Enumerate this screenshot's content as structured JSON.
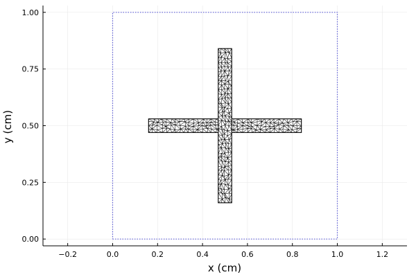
{
  "chart_data": {
    "type": "mesh",
    "title": "",
    "xlabel": "x (cm)",
    "ylabel": "y (cm)",
    "xlim": [
      -0.31,
      1.31
    ],
    "ylim": [
      -0.03,
      1.03
    ],
    "xticks": [
      -0.2,
      0.0,
      0.2,
      0.4,
      0.6,
      0.8,
      1.0,
      1.2
    ],
    "xtick_labels": [
      "−0.2",
      "0.0",
      "0.2",
      "0.4",
      "0.6",
      "0.8",
      "1.0",
      "1.2"
    ],
    "yticks": [
      0.0,
      0.25,
      0.5,
      0.75,
      1.0
    ],
    "ytick_labels": [
      "0.00",
      "0.25",
      "0.50",
      "0.75",
      "1.00"
    ],
    "grid": true,
    "legend": "none",
    "domain_boundary": {
      "x": [
        0,
        1,
        1,
        0,
        0
      ],
      "y": [
        0,
        0,
        1,
        1,
        0
      ],
      "color": "#5b5bd6",
      "style": "dotted"
    },
    "cross": {
      "horizontal_bar": {
        "x": [
          0.16,
          0.84
        ],
        "y": [
          0.47,
          0.53
        ]
      },
      "vertical_bar": {
        "x": [
          0.47,
          0.53
        ],
        "y": [
          0.16,
          0.84
        ]
      },
      "outline_color": "#000000",
      "fill_color": "#ffffff",
      "mesh": "triangular"
    }
  }
}
